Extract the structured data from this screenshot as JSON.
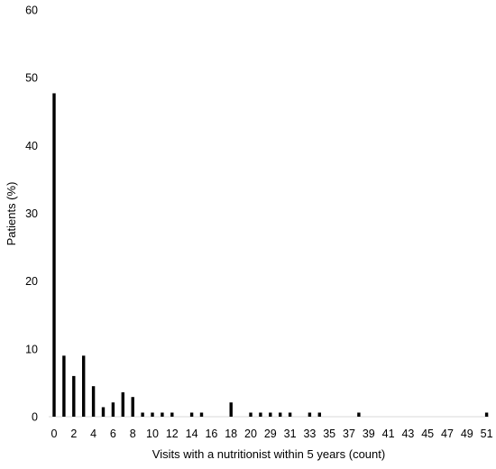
{
  "chart_data": {
    "type": "bar",
    "xlabel": "Visits with a nutritionist within 5 years (count)",
    "ylabel": "Patients (%)",
    "ylim": [
      0,
      60
    ],
    "yticks": [
      "0",
      "10",
      "20",
      "30",
      "40",
      "50",
      "60"
    ],
    "xticks": [
      "0",
      "2",
      "4",
      "6",
      "8",
      "10",
      "12",
      "14",
      "16",
      "18",
      "20",
      "29",
      "31",
      "33",
      "35",
      "37",
      "39",
      "41",
      "43",
      "45",
      "47",
      "49",
      "51"
    ],
    "grid": false,
    "bar_color": "#000000",
    "bars": [
      {
        "x": 0,
        "y": 47.7
      },
      {
        "x": 1,
        "y": 9.0
      },
      {
        "x": 2,
        "y": 6.0
      },
      {
        "x": 3,
        "y": 9.0
      },
      {
        "x": 4,
        "y": 4.5
      },
      {
        "x": 5,
        "y": 1.4
      },
      {
        "x": 6,
        "y": 2.1
      },
      {
        "x": 7,
        "y": 3.6
      },
      {
        "x": 8,
        "y": 2.9
      },
      {
        "x": 9,
        "y": 0.6
      },
      {
        "x": 10,
        "y": 0.6
      },
      {
        "x": 11,
        "y": 0.6
      },
      {
        "x": 12,
        "y": 0.6
      },
      {
        "x": 14,
        "y": 0.6
      },
      {
        "x": 15,
        "y": 0.6
      },
      {
        "x": 18,
        "y": 2.1
      },
      {
        "x": 20,
        "y": 0.6
      },
      {
        "x": 21,
        "y": 0.6
      },
      {
        "x": 22,
        "y": 0.6
      },
      {
        "x": 23,
        "y": 0.6
      },
      {
        "x": 24,
        "y": 0.6
      },
      {
        "x": 26,
        "y": 0.6
      },
      {
        "x": 27,
        "y": 0.6
      },
      {
        "x": 31,
        "y": 0.6
      },
      {
        "x": 44,
        "y": 0.6
      }
    ]
  }
}
